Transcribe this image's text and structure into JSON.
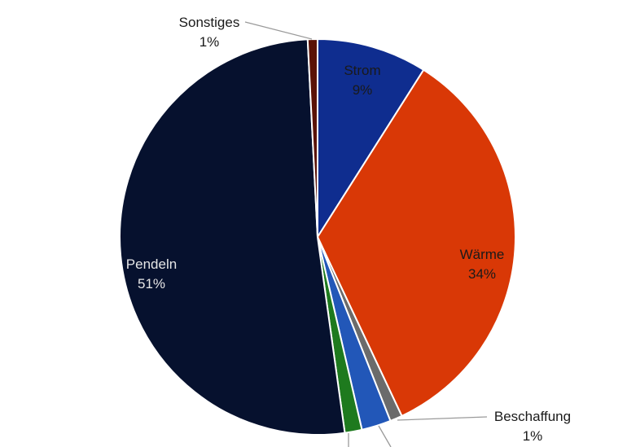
{
  "chart_data": {
    "type": "pie",
    "title": "",
    "start_angle_deg": 0,
    "direction": "clockwise",
    "slices": [
      {
        "label": "Strom",
        "value": 9,
        "value_label": "9%",
        "color": "#0f2d8f",
        "text_color": "#1a1a1a"
      },
      {
        "label": "Wärme",
        "value": 34,
        "value_label": "34%",
        "color": "#d93806",
        "text_color": "#1a1a1a"
      },
      {
        "label": "Beschaffung",
        "value": 1,
        "value_label": "1%",
        "color": "#6b6b6b",
        "text_color": "#1a1a1a"
      },
      {
        "label": "",
        "value": 2.4,
        "value_label": "",
        "color": "#2257b8",
        "text_color": "#1a1a1a"
      },
      {
        "label": "",
        "value": 1.4,
        "value_label": "",
        "color": "#1e7a1e",
        "text_color": "#1a1a1a"
      },
      {
        "label": "Pendeln",
        "value": 51.4,
        "value_label": "51%",
        "color": "#06112e",
        "text_color": "#e6e6e6"
      },
      {
        "label": "Sonstiges",
        "value": 0.8,
        "value_label": "1%",
        "color": "#5a1206",
        "text_color": "#1a1a1a"
      }
    ]
  }
}
